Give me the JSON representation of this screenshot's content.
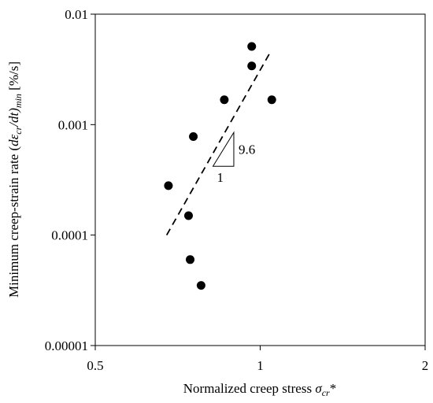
{
  "chart_data": {
    "type": "scatter",
    "x_scale": "log",
    "y_scale": "log",
    "xlim": [
      0.5,
      2
    ],
    "ylim": [
      1e-05,
      0.01
    ],
    "x_ticks": [
      0.5,
      1,
      2
    ],
    "x_tick_labels": [
      "0.5",
      "1",
      "2"
    ],
    "y_ticks": [
      1e-05,
      0.0001,
      0.001,
      0.01
    ],
    "y_tick_labels": [
      "0.00001",
      "0.0001",
      "0.001",
      "0.01"
    ],
    "xlabel": {
      "main": "Normalized creep stress ",
      "symbol": "σ",
      "subscript": "cr",
      "suffix": "*"
    },
    "ylabel": {
      "main": "Minimum creep-strain rate (",
      "symbol": "dε",
      "subscript": "cr",
      "middle": "/dt)",
      "subscript2": "min",
      "unit": " [%/s]"
    },
    "grid": false,
    "legend": "none",
    "points": [
      {
        "x": 0.68,
        "y": 0.00028
      },
      {
        "x": 0.74,
        "y": 0.00015
      },
      {
        "x": 0.745,
        "y": 6e-05
      },
      {
        "x": 0.755,
        "y": 0.00078
      },
      {
        "x": 0.78,
        "y": 3.5e-05
      },
      {
        "x": 0.86,
        "y": 0.00168
      },
      {
        "x": 0.965,
        "y": 0.0051
      },
      {
        "x": 0.965,
        "y": 0.0034
      },
      {
        "x": 1.05,
        "y": 0.00168
      }
    ],
    "trendline": {
      "style": "dashed",
      "x": [
        0.675,
        1.04
      ],
      "y": [
        0.0001,
        0.0044
      ]
    },
    "slope_annotation": {
      "slope_label": "9.6",
      "run_label": "1",
      "x_left": 0.82,
      "x_right": 0.895,
      "y_bottom": 0.00042,
      "y_top": 0.00085
    }
  }
}
